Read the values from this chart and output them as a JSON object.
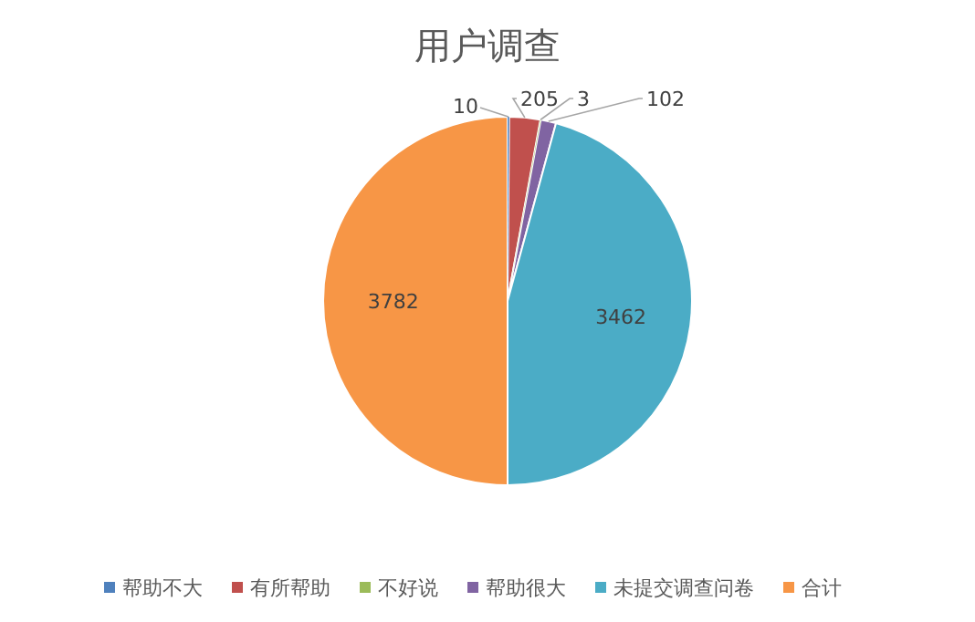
{
  "chart_data": {
    "type": "pie",
    "title": "用户调查",
    "categories": [
      "帮助不大",
      "有所帮助",
      "不好说",
      "帮助很大",
      "未提交调查问卷",
      "合计"
    ],
    "values": [
      10,
      205,
      3,
      102,
      3462,
      3782
    ],
    "colors": [
      "#4f81bd",
      "#c0504d",
      "#9bbb59",
      "#8064a2",
      "#4bacc6",
      "#f79646"
    ],
    "data_labels": true,
    "legend": "bottom"
  }
}
